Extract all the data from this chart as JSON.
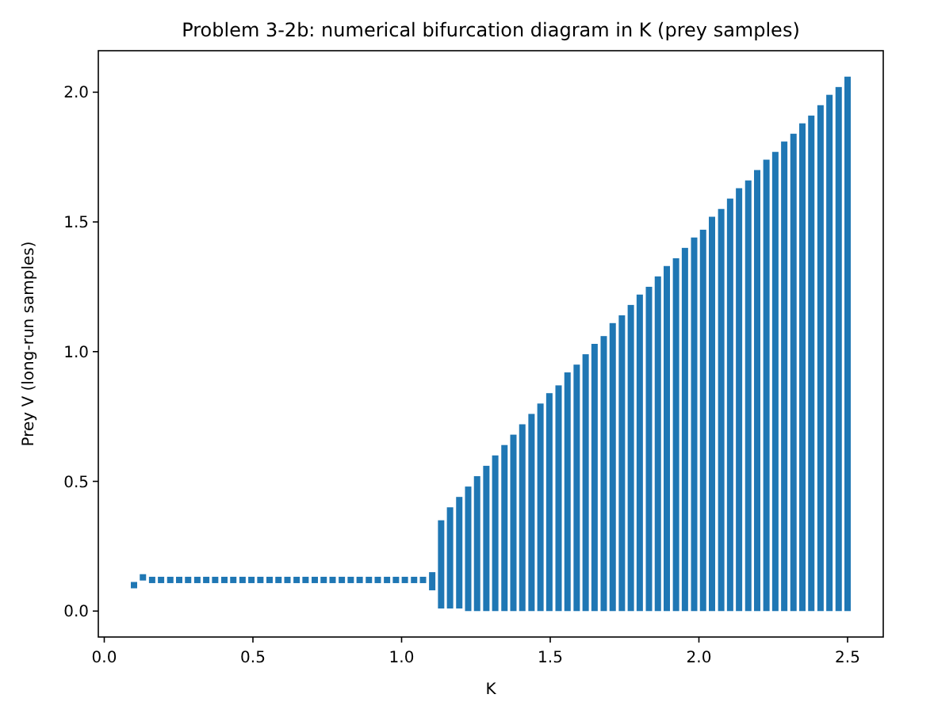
{
  "chart_data": {
    "type": "scatter",
    "title": "Problem 3-2b: numerical bifurcation diagram in K (prey samples)",
    "xlabel": "K",
    "ylabel": "Prey V (long-run samples)",
    "xlim": [
      -0.02,
      2.62
    ],
    "ylim": [
      -0.1,
      2.16
    ],
    "xticks": [
      {
        "value": 0,
        "label": "0.0"
      },
      {
        "value": 0.5,
        "label": "0.5"
      },
      {
        "value": 1,
        "label": "1.0"
      },
      {
        "value": 1.5,
        "label": "1.5"
      },
      {
        "value": 2,
        "label": "2.0"
      },
      {
        "value": 2.5,
        "label": "2.5"
      }
    ],
    "yticks": [
      {
        "value": 0,
        "label": "0.0"
      },
      {
        "value": 0.5,
        "label": "0.5"
      },
      {
        "value": 1,
        "label": "1.0"
      },
      {
        "value": 1.5,
        "label": "1.5"
      },
      {
        "value": 2,
        "label": "2.0"
      }
    ],
    "marker": "square",
    "series": [
      {
        "color": "#1f77b4",
        "x": [
          0.1,
          0.13,
          0.161,
          0.191,
          0.222,
          0.252,
          0.282,
          0.313,
          0.343,
          0.373,
          0.404,
          0.434,
          0.465,
          0.495,
          0.525,
          0.556,
          0.586,
          0.616,
          0.647,
          0.677,
          0.708,
          0.738,
          0.768,
          0.799,
          0.829,
          0.859,
          0.89,
          0.92,
          0.951,
          0.981,
          1.011,
          1.042,
          1.072
        ],
        "values": [
          0.1,
          0.13,
          0.12,
          0.12,
          0.12,
          0.12,
          0.12,
          0.12,
          0.12,
          0.12,
          0.12,
          0.12,
          0.12,
          0.12,
          0.12,
          0.12,
          0.12,
          0.12,
          0.12,
          0.12,
          0.12,
          0.12,
          0.12,
          0.12,
          0.12,
          0.12,
          0.12,
          0.12,
          0.12,
          0.12,
          0.12,
          0.12,
          0.12
        ]
      },
      {
        "type": "bar",
        "color": "#1f77b4",
        "x": [
          1.103,
          1.133,
          1.163,
          1.194,
          1.224,
          1.254,
          1.285,
          1.315,
          1.346,
          1.376,
          1.406,
          1.437,
          1.467,
          1.497,
          1.528,
          1.558,
          1.589,
          1.619,
          1.649,
          1.68,
          1.71,
          1.741,
          1.771,
          1.801,
          1.832,
          1.862,
          1.892,
          1.923,
          1.953,
          1.984,
          2.014,
          2.044,
          2.075,
          2.105,
          2.135,
          2.166,
          2.196,
          2.227,
          2.257,
          2.287,
          2.318,
          2.348,
          2.378,
          2.409,
          2.439,
          2.47,
          2.5
        ],
        "base": [
          0.08,
          0.01,
          0.01,
          0.01,
          0,
          0,
          0,
          0,
          0,
          0,
          0,
          0,
          0,
          0,
          0,
          0,
          0,
          0,
          0,
          0,
          0,
          0,
          0,
          0,
          0,
          0,
          0,
          0,
          0,
          0,
          0,
          0,
          0,
          0,
          0,
          0,
          0,
          0,
          0,
          0,
          0,
          0,
          0,
          0,
          0,
          0,
          0
        ],
        "values": [
          0.07,
          0.34,
          0.39,
          0.43,
          0.48,
          0.52,
          0.56,
          0.6,
          0.64,
          0.68,
          0.72,
          0.76,
          0.8,
          0.84,
          0.87,
          0.92,
          0.95,
          0.99,
          1.03,
          1.06,
          1.11,
          1.14,
          1.18,
          1.22,
          1.25,
          1.29,
          1.33,
          1.36,
          1.4,
          1.44,
          1.47,
          1.52,
          1.55,
          1.59,
          1.63,
          1.66,
          1.7,
          1.74,
          1.77,
          1.81,
          1.84,
          1.88,
          1.91,
          1.95,
          1.99,
          2.02,
          2.06
        ]
      }
    ]
  }
}
